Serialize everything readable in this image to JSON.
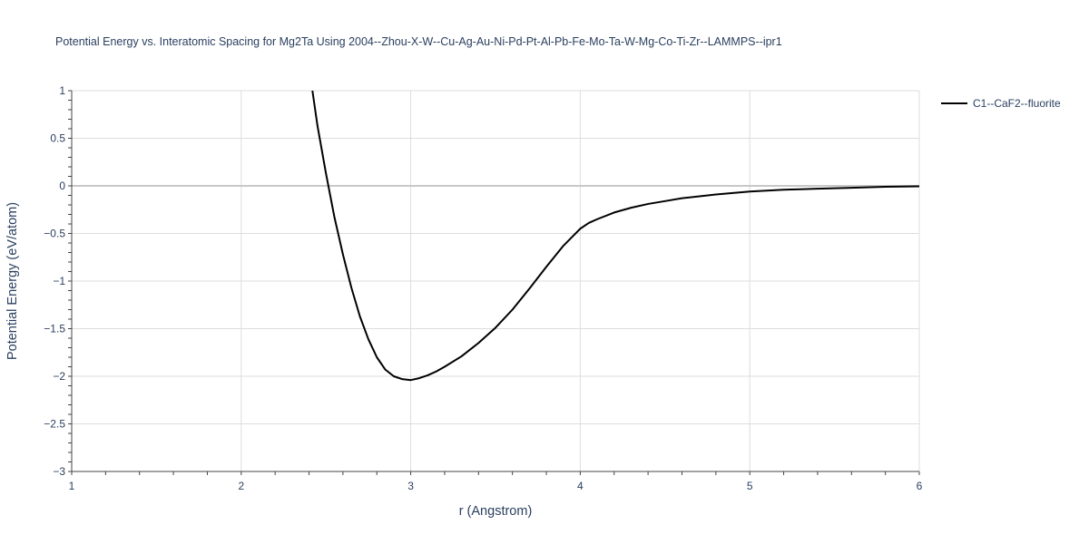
{
  "chart_data": {
    "type": "line",
    "title": "Potential Energy vs. Interatomic Spacing for Mg2Ta Using 2004--Zhou-X-W--Cu-Ag-Au-Ni-Pd-Pt-Al-Pb-Fe-Mo-Ta-W-Mg-Co-Ti-Zr--LAMMPS--ipr1",
    "xlabel": "r (Angstrom)",
    "ylabel": "Potential Energy (eV/atom)",
    "xlim": [
      1,
      6
    ],
    "ylim": [
      -3,
      1
    ],
    "x_ticks": [
      "1",
      "2",
      "3",
      "4",
      "5",
      "6"
    ],
    "y_ticks": [
      "1",
      "0.5",
      "0",
      "−0.5",
      "−1",
      "−1.5",
      "−2",
      "−2.5",
      "−3"
    ],
    "y_tick_values": [
      1,
      0.5,
      0,
      -0.5,
      -1,
      -1.5,
      -2,
      -2.5,
      -3
    ],
    "x_tick_values": [
      1,
      2,
      3,
      4,
      5,
      6
    ],
    "grid": true,
    "legend_position": "top-right",
    "series": [
      {
        "name": "C1--CaF2--fluorite",
        "color": "#000000",
        "x": [
          2.42,
          2.45,
          2.5,
          2.55,
          2.6,
          2.65,
          2.7,
          2.75,
          2.8,
          2.85,
          2.9,
          2.95,
          3.0,
          3.05,
          3.1,
          3.15,
          3.2,
          3.3,
          3.4,
          3.5,
          3.6,
          3.7,
          3.8,
          3.9,
          3.95,
          4.0,
          4.05,
          4.1,
          4.2,
          4.3,
          4.4,
          4.5,
          4.6,
          4.8,
          5.0,
          5.2,
          5.4,
          5.6,
          5.8,
          6.0
        ],
        "y": [
          1.0,
          0.63,
          0.13,
          -0.33,
          -0.72,
          -1.07,
          -1.37,
          -1.61,
          -1.8,
          -1.93,
          -2.0,
          -2.03,
          -2.04,
          -2.02,
          -1.99,
          -1.95,
          -1.9,
          -1.79,
          -1.65,
          -1.49,
          -1.3,
          -1.08,
          -0.85,
          -0.63,
          -0.54,
          -0.45,
          -0.39,
          -0.35,
          -0.28,
          -0.23,
          -0.19,
          -0.16,
          -0.13,
          -0.09,
          -0.06,
          -0.04,
          -0.03,
          -0.02,
          -0.01,
          -0.005
        ]
      }
    ]
  }
}
